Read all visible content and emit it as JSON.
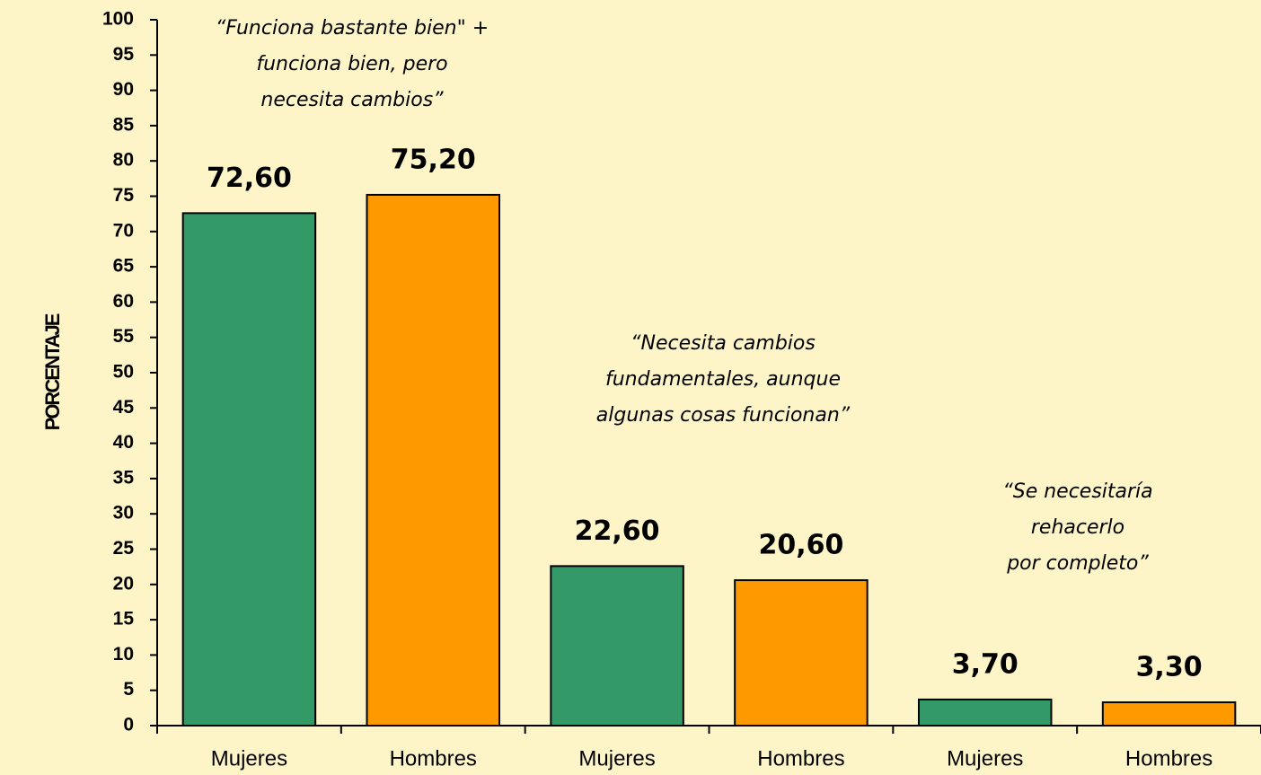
{
  "chart_data": {
    "type": "bar",
    "y_label": "PORCENTAJE",
    "categories": [
      "Mujeres",
      "Hombres",
      "Mujeres",
      "Hombres",
      "Mujeres",
      "Hombres"
    ],
    "values": [
      72.6,
      75.2,
      22.6,
      20.6,
      3.7,
      3.3
    ],
    "value_labels": [
      "72,60",
      "75,20",
      "22,60",
      "20,60",
      "3,70",
      "3,30"
    ],
    "colors": [
      "#339966",
      "#ff9900",
      "#339966",
      "#ff9900",
      "#339966",
      "#ff9900"
    ],
    "ylim": [
      0,
      100
    ],
    "yticks": [
      0,
      5,
      10,
      15,
      20,
      25,
      30,
      35,
      40,
      45,
      50,
      55,
      60,
      65,
      70,
      75,
      80,
      85,
      90,
      95,
      100
    ],
    "annotations": [
      [
        "“Funciona bastante bien\" +",
        "funciona bien, pero",
        "necesita cambios”"
      ],
      [
        "“Necesita cambios",
        "fundamentales, aunque",
        "algunas cosas funcionan”"
      ],
      [
        "“Se necesitaría",
        "rehacerlo",
        "por completo”"
      ]
    ]
  }
}
